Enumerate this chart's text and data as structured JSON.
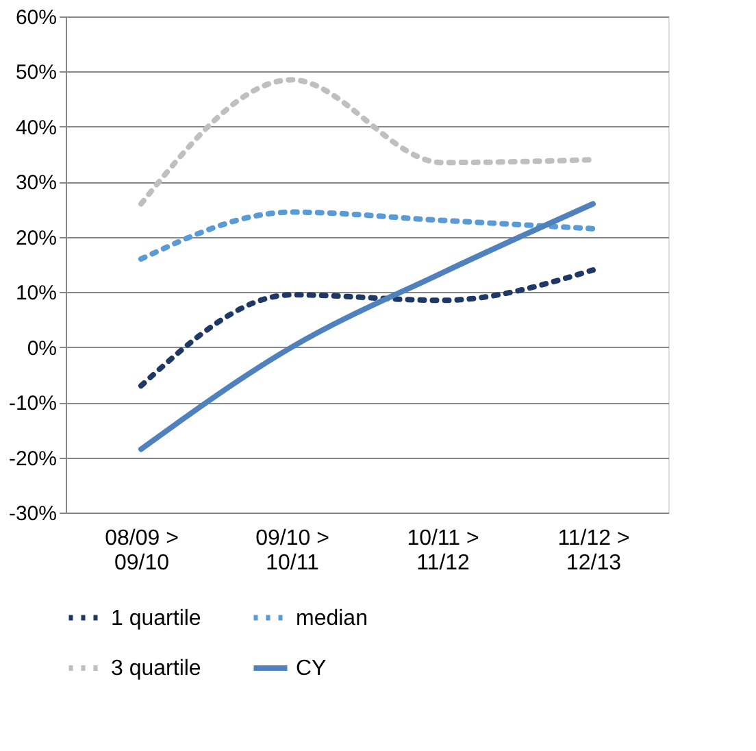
{
  "chart_data": {
    "type": "line",
    "categories": [
      "08/09 > 09/10",
      "09/10 > 10/11",
      "10/11 > 11/12",
      "11/12 > 12/13"
    ],
    "series": [
      {
        "name": "1 quartile",
        "color": "#1f3864",
        "values": [
          -7,
          9.5,
          8.5,
          14
        ],
        "line_style": "dotted"
      },
      {
        "name": "median",
        "color": "#5b9bd5",
        "values": [
          16,
          24.5,
          23,
          21.5
        ],
        "line_style": "dotted"
      },
      {
        "name": "3 quartile",
        "color": "#bfbfbf",
        "values": [
          26,
          48.5,
          33.5,
          34
        ],
        "line_style": "dotted"
      },
      {
        "name": "CY",
        "color": "#4f81bd",
        "values": [
          -18.5,
          0,
          13.5,
          26
        ],
        "line_style": "solid"
      }
    ],
    "ylim": [
      -30,
      60
    ],
    "yticks": [
      {
        "value": -30,
        "label": "-30%"
      },
      {
        "value": -20,
        "label": "-20%"
      },
      {
        "value": -10,
        "label": "-10%"
      },
      {
        "value": 0,
        "label": "0%"
      },
      {
        "value": 10,
        "label": "10%"
      },
      {
        "value": 20,
        "label": "20%"
      },
      {
        "value": 30,
        "label": "30%"
      },
      {
        "value": 40,
        "label": "40%"
      },
      {
        "value": 50,
        "label": "50%"
      },
      {
        "value": 60,
        "label": "60%"
      }
    ],
    "grid": "y",
    "legend": "bottom",
    "marker": "none"
  }
}
